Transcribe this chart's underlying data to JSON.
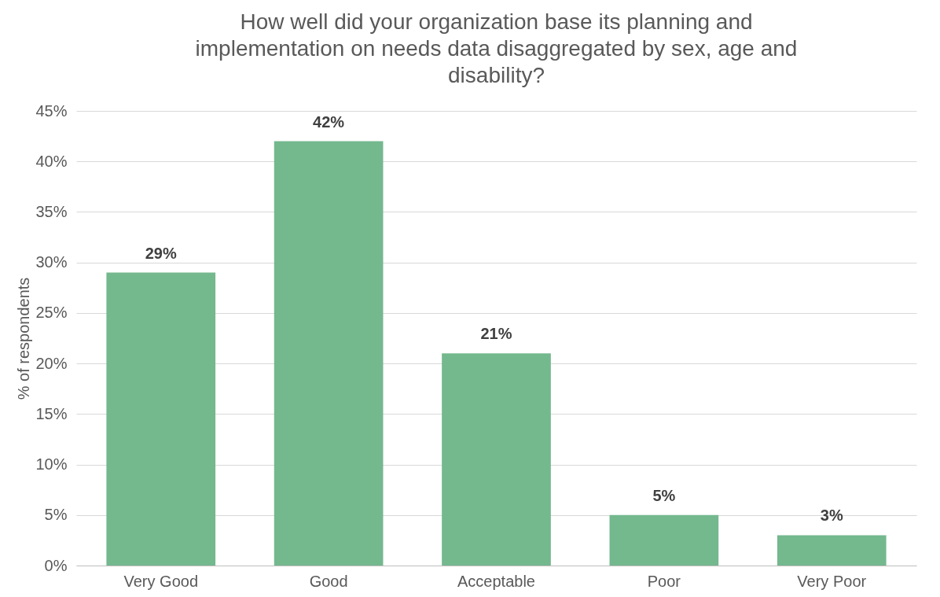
{
  "chart_data": {
    "type": "bar",
    "title": "How well did your organization base its planning and implementation on needs data disaggregated by sex, age and disability?",
    "ylabel": "% of respondents",
    "categories": [
      "Very Good",
      "Good",
      "Acceptable",
      "Poor",
      "Very Poor"
    ],
    "values": [
      29,
      42,
      21,
      5,
      3
    ],
    "value_labels": [
      "29%",
      "42%",
      "21%",
      "5%",
      "3%"
    ],
    "color": "#74b88e",
    "ylim": [
      0,
      45
    ],
    "yticks": [
      {
        "value": 0,
        "label": "0%"
      },
      {
        "value": 5,
        "label": "5%"
      },
      {
        "value": 10,
        "label": "10%"
      },
      {
        "value": 15,
        "label": "15%"
      },
      {
        "value": 20,
        "label": "20%"
      },
      {
        "value": 25,
        "label": "25%"
      },
      {
        "value": 30,
        "label": "30%"
      },
      {
        "value": 35,
        "label": "35%"
      },
      {
        "value": 40,
        "label": "40%"
      },
      {
        "value": 45,
        "label": "45%"
      }
    ],
    "grid": "y"
  }
}
